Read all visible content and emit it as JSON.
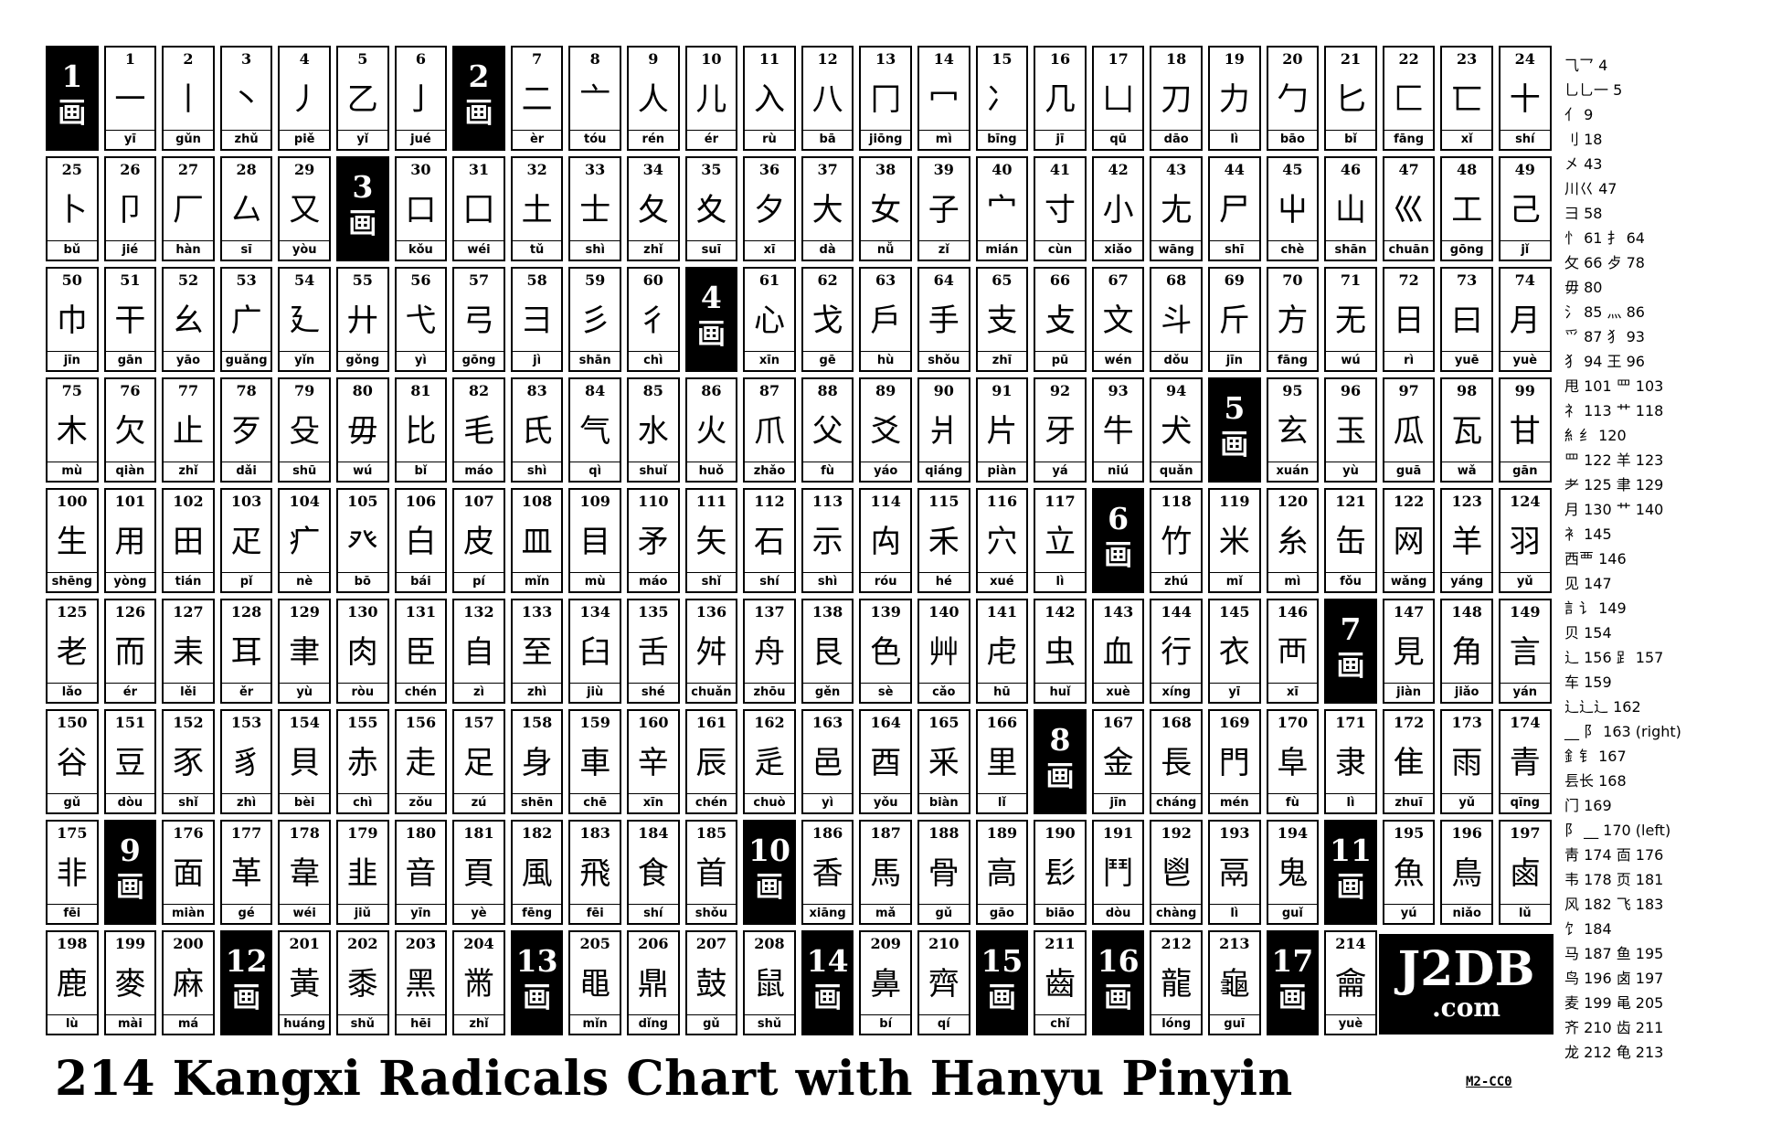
{
  "title": "214 Kangxi Radicals Chart with Hanyu Pinyin",
  "code": "M2-CC0",
  "logo": {
    "line1": "J2DB",
    "line2": ".com"
  },
  "rows": [
    [
      {
        "h": "1",
        "c": "画"
      },
      {
        "n": "1",
        "c": "一",
        "p": "yī"
      },
      {
        "n": "2",
        "c": "丨",
        "p": "gǔn"
      },
      {
        "n": "3",
        "c": "丶",
        "p": "zhǔ"
      },
      {
        "n": "4",
        "c": "丿",
        "p": "piě"
      },
      {
        "n": "5",
        "c": "乙",
        "p": "yǐ"
      },
      {
        "n": "6",
        "c": "亅",
        "p": "jué"
      },
      {
        "h": "2",
        "c": "画"
      },
      {
        "n": "7",
        "c": "二",
        "p": "èr"
      },
      {
        "n": "8",
        "c": "亠",
        "p": "tóu"
      },
      {
        "n": "9",
        "c": "人",
        "p": "rén"
      },
      {
        "n": "10",
        "c": "儿",
        "p": "ér"
      },
      {
        "n": "11",
        "c": "入",
        "p": "rù"
      },
      {
        "n": "12",
        "c": "八",
        "p": "bā"
      },
      {
        "n": "13",
        "c": "冂",
        "p": "jiōng"
      },
      {
        "n": "14",
        "c": "冖",
        "p": "mì"
      },
      {
        "n": "15",
        "c": "冫",
        "p": "bīng"
      },
      {
        "n": "16",
        "c": "几",
        "p": "jī"
      },
      {
        "n": "17",
        "c": "凵",
        "p": "qū"
      },
      {
        "n": "18",
        "c": "刀",
        "p": "dāo"
      },
      {
        "n": "19",
        "c": "力",
        "p": "lì"
      },
      {
        "n": "20",
        "c": "勹",
        "p": "bāo"
      },
      {
        "n": "21",
        "c": "匕",
        "p": "bǐ"
      },
      {
        "n": "22",
        "c": "匚",
        "p": "fāng"
      },
      {
        "n": "23",
        "c": "匸",
        "p": "xǐ"
      },
      {
        "n": "24",
        "c": "十",
        "p": "shí"
      }
    ],
    [
      {
        "n": "25",
        "c": "卜",
        "p": "bǔ"
      },
      {
        "n": "26",
        "c": "卩",
        "p": "jié"
      },
      {
        "n": "27",
        "c": "厂",
        "p": "hàn"
      },
      {
        "n": "28",
        "c": "厶",
        "p": "sī"
      },
      {
        "n": "29",
        "c": "又",
        "p": "yòu"
      },
      {
        "h": "3",
        "c": "画"
      },
      {
        "n": "30",
        "c": "口",
        "p": "kǒu"
      },
      {
        "n": "31",
        "c": "囗",
        "p": "wéi"
      },
      {
        "n": "32",
        "c": "土",
        "p": "tǔ"
      },
      {
        "n": "33",
        "c": "士",
        "p": "shì"
      },
      {
        "n": "34",
        "c": "夂",
        "p": "zhǐ"
      },
      {
        "n": "35",
        "c": "夊",
        "p": "suī"
      },
      {
        "n": "36",
        "c": "夕",
        "p": "xī"
      },
      {
        "n": "37",
        "c": "大",
        "p": "dà"
      },
      {
        "n": "38",
        "c": "女",
        "p": "nǚ"
      },
      {
        "n": "39",
        "c": "子",
        "p": "zǐ"
      },
      {
        "n": "40",
        "c": "宀",
        "p": "mián"
      },
      {
        "n": "41",
        "c": "寸",
        "p": "cùn"
      },
      {
        "n": "42",
        "c": "小",
        "p": "xiǎo"
      },
      {
        "n": "43",
        "c": "尢",
        "p": "wāng"
      },
      {
        "n": "44",
        "c": "尸",
        "p": "shī"
      },
      {
        "n": "45",
        "c": "屮",
        "p": "chè"
      },
      {
        "n": "46",
        "c": "山",
        "p": "shān"
      },
      {
        "n": "47",
        "c": "巛",
        "p": "chuān"
      },
      {
        "n": "48",
        "c": "工",
        "p": "gōng"
      },
      {
        "n": "49",
        "c": "己",
        "p": "jǐ"
      }
    ],
    [
      {
        "n": "50",
        "c": "巾",
        "p": "jīn"
      },
      {
        "n": "51",
        "c": "干",
        "p": "gān"
      },
      {
        "n": "52",
        "c": "幺",
        "p": "yāo"
      },
      {
        "n": "53",
        "c": "广",
        "p": "guǎng"
      },
      {
        "n": "54",
        "c": "廴",
        "p": "yǐn"
      },
      {
        "n": "55",
        "c": "廾",
        "p": "gǒng"
      },
      {
        "n": "56",
        "c": "弋",
        "p": "yì"
      },
      {
        "n": "57",
        "c": "弓",
        "p": "gōng"
      },
      {
        "n": "58",
        "c": "彐",
        "p": "jì"
      },
      {
        "n": "59",
        "c": "彡",
        "p": "shān"
      },
      {
        "n": "60",
        "c": "彳",
        "p": "chì"
      },
      {
        "h": "4",
        "c": "画"
      },
      {
        "n": "61",
        "c": "心",
        "p": "xīn"
      },
      {
        "n": "62",
        "c": "戈",
        "p": "gē"
      },
      {
        "n": "63",
        "c": "戶",
        "p": "hù"
      },
      {
        "n": "64",
        "c": "手",
        "p": "shǒu"
      },
      {
        "n": "65",
        "c": "支",
        "p": "zhī"
      },
      {
        "n": "66",
        "c": "攴",
        "p": "pū"
      },
      {
        "n": "67",
        "c": "文",
        "p": "wén"
      },
      {
        "n": "68",
        "c": "斗",
        "p": "dǒu"
      },
      {
        "n": "69",
        "c": "斤",
        "p": "jīn"
      },
      {
        "n": "70",
        "c": "方",
        "p": "fāng"
      },
      {
        "n": "71",
        "c": "无",
        "p": "wú"
      },
      {
        "n": "72",
        "c": "日",
        "p": "rì"
      },
      {
        "n": "73",
        "c": "曰",
        "p": "yuē"
      },
      {
        "n": "74",
        "c": "月",
        "p": "yuè"
      }
    ],
    [
      {
        "n": "75",
        "c": "木",
        "p": "mù"
      },
      {
        "n": "76",
        "c": "欠",
        "p": "qiàn"
      },
      {
        "n": "77",
        "c": "止",
        "p": "zhǐ"
      },
      {
        "n": "78",
        "c": "歹",
        "p": "dǎi"
      },
      {
        "n": "79",
        "c": "殳",
        "p": "shū"
      },
      {
        "n": "80",
        "c": "毋",
        "p": "wú"
      },
      {
        "n": "81",
        "c": "比",
        "p": "bǐ"
      },
      {
        "n": "82",
        "c": "毛",
        "p": "máo"
      },
      {
        "n": "83",
        "c": "氏",
        "p": "shì"
      },
      {
        "n": "84",
        "c": "气",
        "p": "qì"
      },
      {
        "n": "85",
        "c": "水",
        "p": "shuǐ"
      },
      {
        "n": "86",
        "c": "火",
        "p": "huǒ"
      },
      {
        "n": "87",
        "c": "爪",
        "p": "zhǎo"
      },
      {
        "n": "88",
        "c": "父",
        "p": "fù"
      },
      {
        "n": "89",
        "c": "爻",
        "p": "yáo"
      },
      {
        "n": "90",
        "c": "爿",
        "p": "qiáng"
      },
      {
        "n": "91",
        "c": "片",
        "p": "piàn"
      },
      {
        "n": "92",
        "c": "牙",
        "p": "yá"
      },
      {
        "n": "93",
        "c": "牛",
        "p": "niú"
      },
      {
        "n": "94",
        "c": "犬",
        "p": "quǎn"
      },
      {
        "h": "5",
        "c": "画"
      },
      {
        "n": "95",
        "c": "玄",
        "p": "xuán"
      },
      {
        "n": "96",
        "c": "玉",
        "p": "yù"
      },
      {
        "n": "97",
        "c": "瓜",
        "p": "guā"
      },
      {
        "n": "98",
        "c": "瓦",
        "p": "wǎ"
      },
      {
        "n": "99",
        "c": "甘",
        "p": "gān"
      }
    ],
    [
      {
        "n": "100",
        "c": "生",
        "p": "shēng"
      },
      {
        "n": "101",
        "c": "用",
        "p": "yòng"
      },
      {
        "n": "102",
        "c": "田",
        "p": "tián"
      },
      {
        "n": "103",
        "c": "疋",
        "p": "pǐ"
      },
      {
        "n": "104",
        "c": "疒",
        "p": "nè"
      },
      {
        "n": "105",
        "c": "癶",
        "p": "bō"
      },
      {
        "n": "106",
        "c": "白",
        "p": "bái"
      },
      {
        "n": "107",
        "c": "皮",
        "p": "pí"
      },
      {
        "n": "108",
        "c": "皿",
        "p": "mǐn"
      },
      {
        "n": "109",
        "c": "目",
        "p": "mù"
      },
      {
        "n": "110",
        "c": "矛",
        "p": "máo"
      },
      {
        "n": "111",
        "c": "矢",
        "p": "shǐ"
      },
      {
        "n": "112",
        "c": "石",
        "p": "shí"
      },
      {
        "n": "113",
        "c": "示",
        "p": "shì"
      },
      {
        "n": "114",
        "c": "禸",
        "p": "róu"
      },
      {
        "n": "115",
        "c": "禾",
        "p": "hé"
      },
      {
        "n": "116",
        "c": "穴",
        "p": "xué"
      },
      {
        "n": "117",
        "c": "立",
        "p": "lì"
      },
      {
        "h": "6",
        "c": "画"
      },
      {
        "n": "118",
        "c": "竹",
        "p": "zhú"
      },
      {
        "n": "119",
        "c": "米",
        "p": "mǐ"
      },
      {
        "n": "120",
        "c": "糸",
        "p": "mì"
      },
      {
        "n": "121",
        "c": "缶",
        "p": "fǒu"
      },
      {
        "n": "122",
        "c": "网",
        "p": "wǎng"
      },
      {
        "n": "123",
        "c": "羊",
        "p": "yáng"
      },
      {
        "n": "124",
        "c": "羽",
        "p": "yǔ"
      }
    ],
    [
      {
        "n": "125",
        "c": "老",
        "p": "lǎo"
      },
      {
        "n": "126",
        "c": "而",
        "p": "ér"
      },
      {
        "n": "127",
        "c": "耒",
        "p": "lěi"
      },
      {
        "n": "128",
        "c": "耳",
        "p": "ěr"
      },
      {
        "n": "129",
        "c": "聿",
        "p": "yù"
      },
      {
        "n": "130",
        "c": "肉",
        "p": "ròu"
      },
      {
        "n": "131",
        "c": "臣",
        "p": "chén"
      },
      {
        "n": "132",
        "c": "自",
        "p": "zì"
      },
      {
        "n": "133",
        "c": "至",
        "p": "zhì"
      },
      {
        "n": "134",
        "c": "臼",
        "p": "jiù"
      },
      {
        "n": "135",
        "c": "舌",
        "p": "shé"
      },
      {
        "n": "136",
        "c": "舛",
        "p": "chuǎn"
      },
      {
        "n": "137",
        "c": "舟",
        "p": "zhōu"
      },
      {
        "n": "138",
        "c": "艮",
        "p": "gěn"
      },
      {
        "n": "139",
        "c": "色",
        "p": "sè"
      },
      {
        "n": "140",
        "c": "艸",
        "p": "cǎo"
      },
      {
        "n": "141",
        "c": "虍",
        "p": "hū"
      },
      {
        "n": "142",
        "c": "虫",
        "p": "huǐ"
      },
      {
        "n": "143",
        "c": "血",
        "p": "xuè"
      },
      {
        "n": "144",
        "c": "行",
        "p": "xíng"
      },
      {
        "n": "145",
        "c": "衣",
        "p": "yī"
      },
      {
        "n": "146",
        "c": "襾",
        "p": "xī"
      },
      {
        "h": "7",
        "c": "画"
      },
      {
        "n": "147",
        "c": "見",
        "p": "jiàn"
      },
      {
        "n": "148",
        "c": "角",
        "p": "jiǎo"
      },
      {
        "n": "149",
        "c": "言",
        "p": "yán"
      }
    ],
    [
      {
        "n": "150",
        "c": "谷",
        "p": "gǔ"
      },
      {
        "n": "151",
        "c": "豆",
        "p": "dòu"
      },
      {
        "n": "152",
        "c": "豕",
        "p": "shǐ"
      },
      {
        "n": "153",
        "c": "豸",
        "p": "zhì"
      },
      {
        "n": "154",
        "c": "貝",
        "p": "bèi"
      },
      {
        "n": "155",
        "c": "赤",
        "p": "chì"
      },
      {
        "n": "156",
        "c": "走",
        "p": "zǒu"
      },
      {
        "n": "157",
        "c": "足",
        "p": "zú"
      },
      {
        "n": "158",
        "c": "身",
        "p": "shēn"
      },
      {
        "n": "159",
        "c": "車",
        "p": "chē"
      },
      {
        "n": "160",
        "c": "辛",
        "p": "xīn"
      },
      {
        "n": "161",
        "c": "辰",
        "p": "chén"
      },
      {
        "n": "162",
        "c": "辵",
        "p": "chuò"
      },
      {
        "n": "163",
        "c": "邑",
        "p": "yì"
      },
      {
        "n": "164",
        "c": "酉",
        "p": "yǒu"
      },
      {
        "n": "165",
        "c": "釆",
        "p": "biàn"
      },
      {
        "n": "166",
        "c": "里",
        "p": "lǐ"
      },
      {
        "h": "8",
        "c": "画"
      },
      {
        "n": "167",
        "c": "金",
        "p": "jīn"
      },
      {
        "n": "168",
        "c": "長",
        "p": "cháng"
      },
      {
        "n": "169",
        "c": "門",
        "p": "mén"
      },
      {
        "n": "170",
        "c": "阜",
        "p": "fù"
      },
      {
        "n": "171",
        "c": "隶",
        "p": "lì"
      },
      {
        "n": "172",
        "c": "隹",
        "p": "zhuī"
      },
      {
        "n": "173",
        "c": "雨",
        "p": "yǔ"
      },
      {
        "n": "174",
        "c": "青",
        "p": "qīng"
      }
    ],
    [
      {
        "n": "175",
        "c": "非",
        "p": "fēi"
      },
      {
        "h": "9",
        "c": "画"
      },
      {
        "n": "176",
        "c": "面",
        "p": "miàn"
      },
      {
        "n": "177",
        "c": "革",
        "p": "gé"
      },
      {
        "n": "178",
        "c": "韋",
        "p": "wéi"
      },
      {
        "n": "179",
        "c": "韭",
        "p": "jiǔ"
      },
      {
        "n": "180",
        "c": "音",
        "p": "yīn"
      },
      {
        "n": "181",
        "c": "頁",
        "p": "yè"
      },
      {
        "n": "182",
        "c": "風",
        "p": "fēng"
      },
      {
        "n": "183",
        "c": "飛",
        "p": "fēi"
      },
      {
        "n": "184",
        "c": "食",
        "p": "shí"
      },
      {
        "n": "185",
        "c": "首",
        "p": "shǒu"
      },
      {
        "h": "10",
        "c": "画"
      },
      {
        "n": "186",
        "c": "香",
        "p": "xiāng"
      },
      {
        "n": "187",
        "c": "馬",
        "p": "mǎ"
      },
      {
        "n": "188",
        "c": "骨",
        "p": "gǔ"
      },
      {
        "n": "189",
        "c": "高",
        "p": "gāo"
      },
      {
        "n": "190",
        "c": "髟",
        "p": "biāo"
      },
      {
        "n": "191",
        "c": "鬥",
        "p": "dòu"
      },
      {
        "n": "192",
        "c": "鬯",
        "p": "chàng"
      },
      {
        "n": "193",
        "c": "鬲",
        "p": "lì"
      },
      {
        "n": "194",
        "c": "鬼",
        "p": "guǐ"
      },
      {
        "h": "11",
        "c": "画"
      },
      {
        "n": "195",
        "c": "魚",
        "p": "yú"
      },
      {
        "n": "196",
        "c": "鳥",
        "p": "niǎo"
      },
      {
        "n": "197",
        "c": "鹵",
        "p": "lǔ"
      }
    ],
    [
      {
        "n": "198",
        "c": "鹿",
        "p": "lù"
      },
      {
        "n": "199",
        "c": "麥",
        "p": "mài"
      },
      {
        "n": "200",
        "c": "麻",
        "p": "má"
      },
      {
        "h": "12",
        "c": "画"
      },
      {
        "n": "201",
        "c": "黃",
        "p": "huáng"
      },
      {
        "n": "202",
        "c": "黍",
        "p": "shǔ"
      },
      {
        "n": "203",
        "c": "黑",
        "p": "hēi"
      },
      {
        "n": "204",
        "c": "黹",
        "p": "zhǐ"
      },
      {
        "h": "13",
        "c": "画"
      },
      {
        "n": "205",
        "c": "黽",
        "p": "mǐn"
      },
      {
        "n": "206",
        "c": "鼎",
        "p": "dǐng"
      },
      {
        "n": "207",
        "c": "鼓",
        "p": "gǔ"
      },
      {
        "n": "208",
        "c": "鼠",
        "p": "shǔ"
      },
      {
        "h": "14",
        "c": "画"
      },
      {
        "n": "209",
        "c": "鼻",
        "p": "bí"
      },
      {
        "n": "210",
        "c": "齊",
        "p": "qí"
      },
      {
        "h": "15",
        "c": "画"
      },
      {
        "n": "211",
        "c": "齒",
        "p": "chǐ"
      },
      {
        "h": "16",
        "c": "画"
      },
      {
        "n": "212",
        "c": "龍",
        "p": "lóng"
      },
      {
        "n": "213",
        "c": "龜",
        "p": "guī"
      },
      {
        "h": "17",
        "c": "画"
      },
      {
        "n": "214",
        "c": "龠",
        "p": "yuè"
      }
    ]
  ],
  "variants": [
    "⺄乛 4",
    "乚乚一 5",
    "亻 9",
    "刂 18",
    "㐅 43",
    "川巜 47",
    "彐 58",
    "忄 61 扌 64",
    "攵 66 歺 78",
    "毋 80",
    "氵 85 灬 86",
    "爫 87 犭 93",
    "犭 94 王 96",
    "甩 101 罒 103",
    "礻 113 艹 118",
    "糹纟 120",
    "罒 122 羊 123",
    "耂 125 聿 129",
    "月 130 艹 140",
    "衤 145",
    "西覀 146",
    "见 147",
    "訁讠 149",
    "贝 154",
    "辶 156 𧾷 157",
    "车 159",
    "辶辶辶 162",
    "__ 阝 163 (right)",
    "釒钅 167",
    "镸长 168",
    "门 169",
    "阝 __ 170 (left)",
    "靑 174 靣 176",
    "韦 178 页 181",
    "风 182 飞 183",
    "饣 184",
    "马 187 鱼 195",
    "鸟 196 卤 197",
    "麦 199 黾 205",
    "齐 210 齿 211",
    "龙 212 龟 213"
  ]
}
